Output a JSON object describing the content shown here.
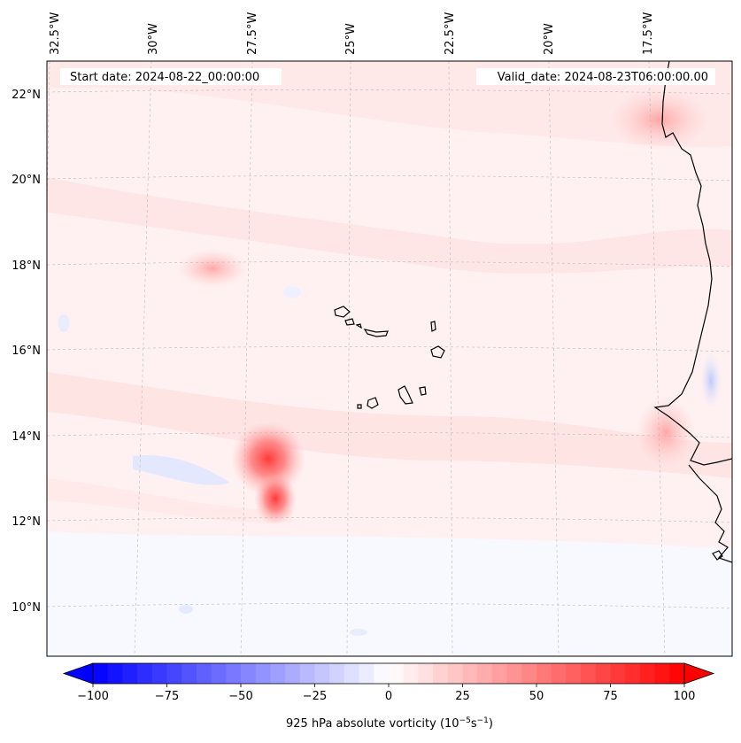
{
  "map": {
    "start_date_label": "Start date: 2024-08-22_00:00:00",
    "valid_date_label": "Valid_date: 2024-08-23T06:00:00.00",
    "lon_labels": [
      "32.5°W",
      "30°W",
      "27.5°W",
      "25°W",
      "22.5°W",
      "20°W",
      "17.5°W"
    ],
    "lat_labels": [
      "22°N",
      "20°N",
      "18°N",
      "16°N",
      "14°N",
      "12°N",
      "10°N"
    ],
    "field": "925 hPa absolute vorticity",
    "features": [
      {
        "name": "vortex-main",
        "lon": -26.5,
        "lat": 13.5,
        "vorticity": 70
      },
      {
        "name": "vortex-south",
        "lon": -26.3,
        "lat": 12.5,
        "vorticity": 55
      },
      {
        "name": "vortex-north",
        "lon": -28.5,
        "lat": 18.0,
        "vorticity": 22
      },
      {
        "name": "coast-max-senegal",
        "lon": -17.2,
        "lat": 14.0,
        "vorticity": 32
      },
      {
        "name": "coast-max-mauritania",
        "lon": -16.5,
        "lat": 21.5,
        "vorticity": 18
      }
    ]
  },
  "colorbar": {
    "label_main": "925 hPa absolute vorticity (10",
    "label_exp1": "−5",
    "label_mid": "s",
    "label_exp2": "−1",
    "label_close": ")",
    "ticks": [
      "−100",
      "−75",
      "−50",
      "−25",
      "0",
      "25",
      "50",
      "75",
      "100"
    ],
    "vmin": -100,
    "vmax": 100,
    "levels": 40,
    "low_color": "#0000ff",
    "mid_color": "#ffffff",
    "high_color": "#ff0000"
  }
}
